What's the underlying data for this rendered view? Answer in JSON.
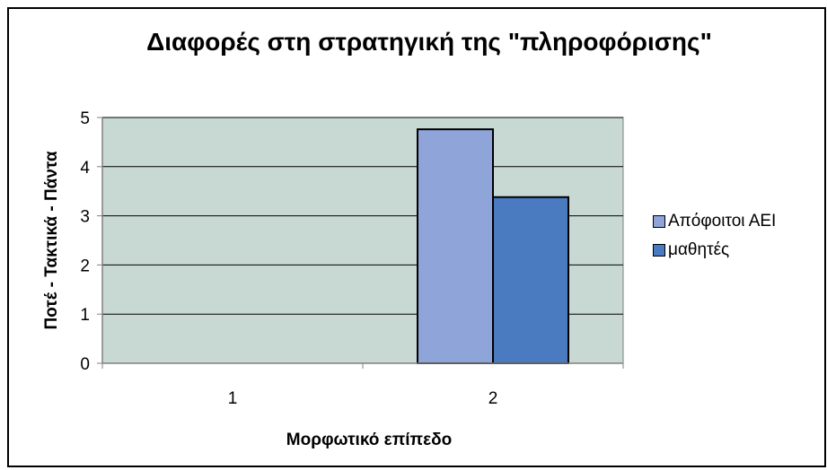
{
  "chart_data": {
    "type": "bar",
    "title": "Διαφορές στη στρατηγική της \"πληροφόρισης\"",
    "xlabel": "Μορφωτικό επίπεδο",
    "ylabel": "Ποτέ - Τακτικά - Πάντα",
    "categories": [
      "1",
      "2"
    ],
    "series": [
      {
        "name": "Απόφοιτοι ΑΕΙ",
        "values": [
          0,
          4.76
        ],
        "color": "#8fa4d9"
      },
      {
        "name": "μαθητές",
        "values": [
          0,
          3.38
        ],
        "color": "#4a7ac0"
      }
    ],
    "ylim": [
      0,
      5
    ],
    "yticks": [
      "0",
      "1",
      "2",
      "3",
      "4",
      "5"
    ],
    "grid": true,
    "legend": "right",
    "plot_background": "#c8d9d4"
  }
}
